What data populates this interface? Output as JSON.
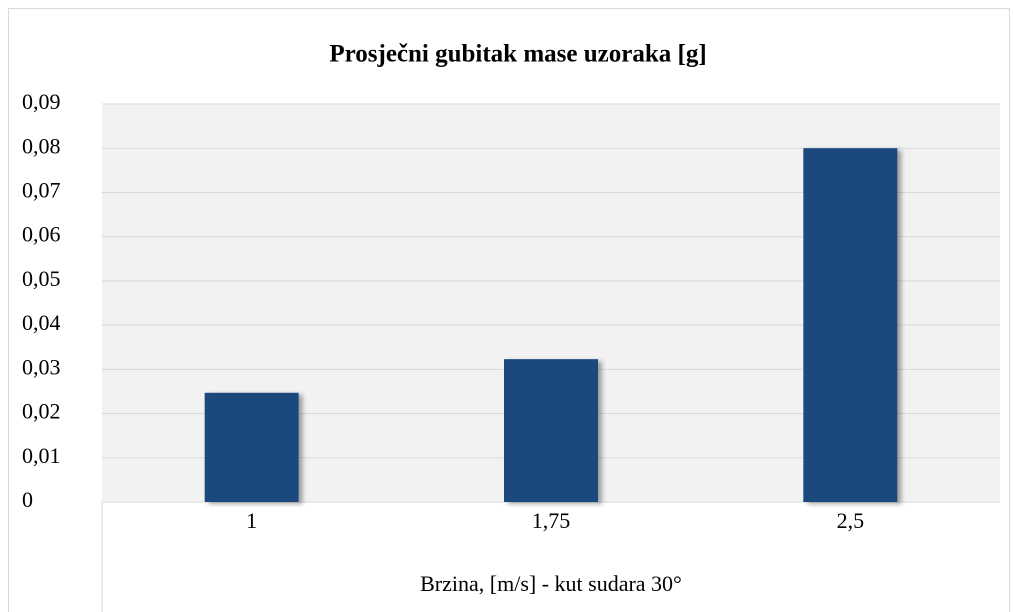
{
  "chart_data": {
    "type": "bar",
    "title": "Prosječni gubitak mase uzoraka [g]",
    "x_label": "Brzina, [m/s] - kut sudara 30°",
    "categories": [
      "1",
      "1,75",
      "2,5"
    ],
    "values": [
      0.0247,
      0.0323,
      0.08
    ],
    "color": "#1f497d",
    "ylim": [
      0,
      0.09
    ],
    "yticks": [
      0,
      {
        "value": 0.01,
        "label": "0,01"
      },
      {
        "value": 0.02,
        "label": "0,02"
      },
      {
        "value": 0.03,
        "label": "0,03"
      },
      {
        "value": 0.04,
        "label": "0,04"
      },
      {
        "value": 0.05,
        "label": "0,05"
      },
      {
        "value": 0.06,
        "label": "0,06"
      },
      {
        "value": 0.07,
        "label": "0,07"
      },
      {
        "value": 0.08,
        "label": "0,08"
      },
      {
        "value": 0.09,
        "label": "0,09"
      }
    ],
    "grid": true
  }
}
